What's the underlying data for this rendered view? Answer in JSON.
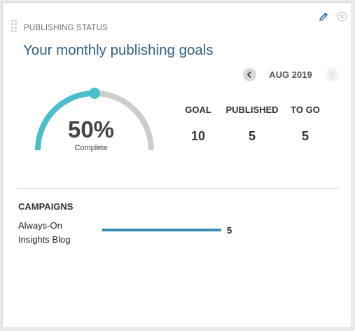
{
  "widget": {
    "label": "PUBLISHING STATUS",
    "title": "Your monthly publishing goals",
    "icons": {
      "edit": "pencil-icon",
      "close": "close-circle-icon",
      "drag": "drag-handle-icon"
    }
  },
  "month_nav": {
    "label": "AUG 2019",
    "prev_icon": "chevron-left-icon",
    "next_icon": "chevron-right-icon"
  },
  "gauge": {
    "percent_label": "50%",
    "caption": "Complete",
    "progress_fraction": 0.5,
    "fill_color": "#4bbfcb",
    "track_color": "#cccccc"
  },
  "stats": [
    {
      "label": "GOAL",
      "value": "10"
    },
    {
      "label": "PUBLISHED",
      "value": "5"
    },
    {
      "label": "TO GO",
      "value": "5"
    }
  ],
  "campaigns": {
    "heading": "CAMPAIGNS",
    "items": [
      {
        "name": "Always-On Insights Blog",
        "count": "5",
        "fraction": 1.0
      }
    ]
  },
  "colors": {
    "title": "#2f6082",
    "bar": "#3b8fb3",
    "edit_icon": "#2e6fae"
  }
}
